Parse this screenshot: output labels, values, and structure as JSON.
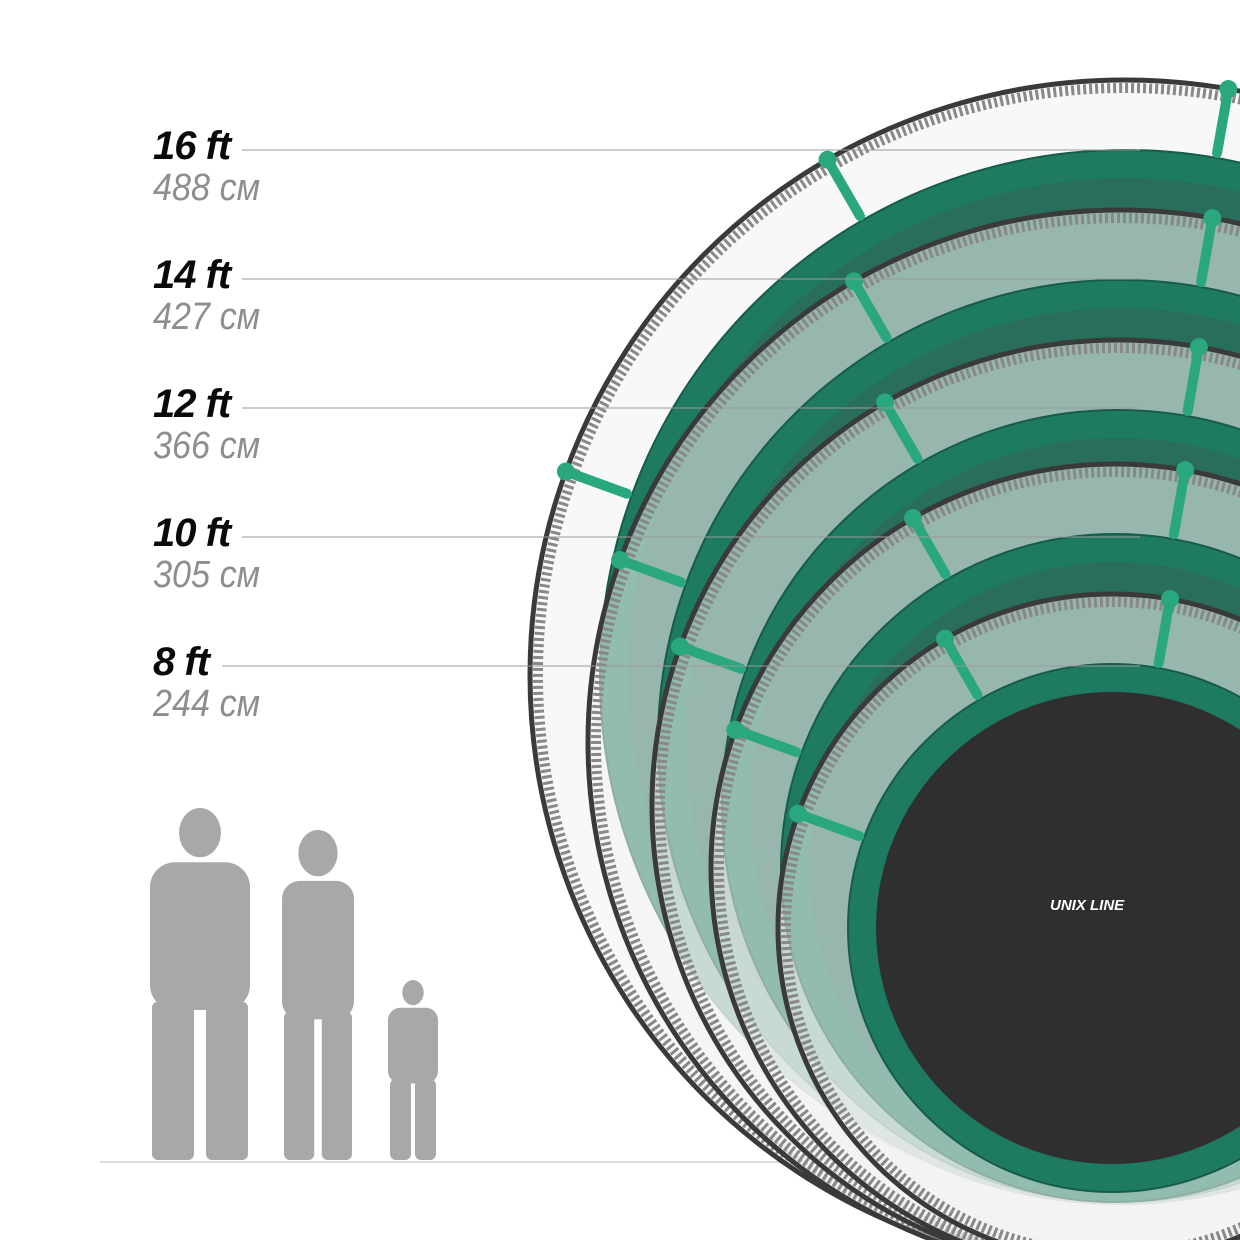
{
  "sizes": [
    {
      "ft": "16 ft",
      "cm": "488 см"
    },
    {
      "ft": "14 ft",
      "cm": "427 см"
    },
    {
      "ft": "12 ft",
      "cm": "366 см"
    },
    {
      "ft": "10 ft",
      "cm": "305 см"
    },
    {
      "ft": "8 ft",
      "cm": "244 см"
    }
  ],
  "logo": {
    "text": "UNIX LINE"
  },
  "colors": {
    "pad": "#1f7a62",
    "mat": "#2f2f2f",
    "net": "#555555",
    "silhouette": "#a8a8a8",
    "pole": "#2aa77f"
  }
}
